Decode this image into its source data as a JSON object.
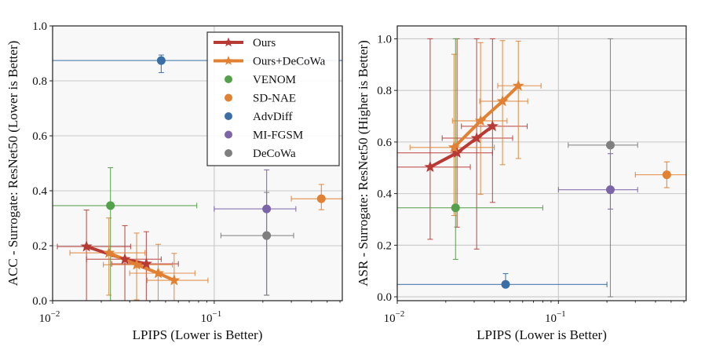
{
  "colors": {
    "Ours": "#b83a35",
    "Ours+DeCoWa": "#e08133",
    "VENOM": "#55a04a",
    "SD-NAE": "#e08133",
    "AdvDiff": "#3a6ea5",
    "MI-FGSM": "#7b64a8",
    "DeCoWa": "#7f7f7f"
  },
  "legend": {
    "placement": "top-right of left panel",
    "entries": [
      {
        "label": "Ours",
        "marker": "star-line"
      },
      {
        "label": "Ours+DeCoWa",
        "marker": "star-line"
      },
      {
        "label": "VENOM",
        "marker": "circle"
      },
      {
        "label": "SD-NAE",
        "marker": "circle"
      },
      {
        "label": "AdvDiff",
        "marker": "circle"
      },
      {
        "label": "MI-FGSM",
        "marker": "circle"
      },
      {
        "label": "DeCoWa",
        "marker": "circle"
      }
    ]
  },
  "chart_data": [
    {
      "type": "scatter",
      "title": "",
      "xlabel": "LPIPS (Lower is Better)",
      "ylabel": "ACC - Surrogate: ResNet50 (Lower is Better)",
      "xscale": "log",
      "xlim": [
        0.01,
        0.62
      ],
      "ylim": [
        0.0,
        1.0
      ],
      "yticks": [
        "0.0",
        "0.2",
        "0.4",
        "0.6",
        "0.8",
        "1.0"
      ],
      "xticks": [
        {
          "base": "10",
          "exp": "−2"
        },
        {
          "base": "10",
          "exp": "−1"
        }
      ],
      "grid": true,
      "series": [
        {
          "name": "Ours",
          "kind": "line",
          "points": [
            {
              "x": 0.0162,
              "y": 0.197,
              "xerr": [
                0.0055,
                0.0142
              ],
              "yerr": [
                0.197,
                0.133
              ]
            },
            {
              "x": 0.028,
              "y": 0.151,
              "xerr": [
                0.0118,
                0.019
              ],
              "yerr": [
                0.151,
                0.122
              ]
            },
            {
              "x": 0.038,
              "y": 0.134,
              "xerr": [
                0.0148,
                0.022
              ],
              "yerr": [
                0.134,
                0.117
              ]
            }
          ]
        },
        {
          "name": "Ours+DeCoWa",
          "kind": "line",
          "points": [
            {
              "x": 0.0223,
              "y": 0.174,
              "xerr": [
                0.0095,
                0.015
              ],
              "yerr": [
                0.154,
                0.127
              ]
            },
            {
              "x": 0.0331,
              "y": 0.131,
              "xerr": [
                0.0125,
                0.022
              ],
              "yerr": [
                0.128,
                0.115
              ]
            },
            {
              "x": 0.045,
              "y": 0.1,
              "xerr": [
                0.015,
                0.031
              ],
              "yerr": [
                0.1,
                0.105
              ]
            },
            {
              "x": 0.0565,
              "y": 0.074,
              "xerr": [
                0.018,
                0.035
              ],
              "yerr": [
                0.074,
                0.098
              ]
            }
          ]
        },
        {
          "name": "VENOM",
          "kind": "point",
          "points": [
            {
              "x": 0.0228,
              "y": 0.346,
              "xerr": [
                0.0128,
                0.0552
              ],
              "yerr": [
                0.346,
                0.138
              ]
            }
          ]
        },
        {
          "name": "SD-NAE",
          "kind": "point",
          "points": [
            {
              "x": 0.46,
              "y": 0.371,
              "xerr": [
                0.16,
                0.16
              ],
              "yerr": [
                0.04,
                0.052
              ]
            }
          ]
        },
        {
          "name": "AdvDiff",
          "kind": "point",
          "points": [
            {
              "x": 0.047,
              "y": 0.874,
              "xerr": [
                0.037,
                0.6
              ],
              "yerr": [
                0.044,
                0.02
              ]
            }
          ]
        },
        {
          "name": "MI-FGSM",
          "kind": "point",
          "points": [
            {
              "x": 0.211,
              "y": 0.334,
              "xerr": [
                0.111,
                0.109
              ],
              "yerr": [
                0.314,
                0.142
              ]
            }
          ]
        },
        {
          "name": "DeCoWa",
          "kind": "point",
          "points": [
            {
              "x": 0.211,
              "y": 0.237,
              "xerr": [
                0.101,
                0.099
              ],
              "yerr": [
                0.217,
                0.157
              ]
            }
          ]
        }
      ]
    },
    {
      "type": "scatter",
      "title": "",
      "xlabel": "LPIPS (Lower is Better)",
      "ylabel": "ASR - Surrogate: ResNet50 (Higher is Better)",
      "xscale": "log",
      "xlim": [
        0.01,
        0.62
      ],
      "ylim": [
        -0.015,
        1.05
      ],
      "yticks": [
        "0.0",
        "0.2",
        "0.4",
        "0.6",
        "0.8",
        "1.0"
      ],
      "xticks": [
        {
          "base": "10",
          "exp": "−2"
        },
        {
          "base": "10",
          "exp": "−1"
        }
      ],
      "grid": true,
      "series": [
        {
          "name": "Ours",
          "kind": "line",
          "points": [
            {
              "x": 0.016,
              "y": 0.503,
              "xerr": [
                0.0066,
                0.0124
              ],
              "yerr": [
                0.28,
                0.497
              ]
            },
            {
              "x": 0.0235,
              "y": 0.558,
              "xerr": [
                0.0135,
                0.0155
              ],
              "yerr": [
                0.288,
                0.442
              ]
            },
            {
              "x": 0.0311,
              "y": 0.615,
              "xerr": [
                0.0121,
                0.0209
              ],
              "yerr": [
                0.43,
                0.385
              ]
            },
            {
              "x": 0.039,
              "y": 0.661,
              "xerr": [
                0.014,
                0.025
              ],
              "yerr": [
                0.295,
                0.339
              ]
            }
          ]
        },
        {
          "name": "Ours+DeCoWa",
          "kind": "line",
          "points": [
            {
              "x": 0.0225,
              "y": 0.579,
              "xerr": [
                0.0105,
                0.0175
              ],
              "yerr": [
                0.264,
                0.361
              ]
            },
            {
              "x": 0.0329,
              "y": 0.682,
              "xerr": [
                0.0109,
                0.0151
              ],
              "yerr": [
                0.285,
                0.303
              ]
            },
            {
              "x": 0.045,
              "y": 0.758,
              "xerr": [
                0.0125,
                0.0195
              ],
              "yerr": [
                0.246,
                0.235
              ]
            },
            {
              "x": 0.0564,
              "y": 0.818,
              "xerr": [
                0.0144,
                0.0216
              ],
              "yerr": [
                0.282,
                0.173
              ]
            }
          ]
        },
        {
          "name": "VENOM",
          "kind": "point",
          "points": [
            {
              "x": 0.023,
              "y": 0.345,
              "xerr": [
                0.013,
                0.057
              ],
              "yerr": [
                0.2,
                0.655
              ]
            }
          ]
        },
        {
          "name": "SD-NAE",
          "kind": "point",
          "points": [
            {
              "x": 0.47,
              "y": 0.473,
              "xerr": [
                0.17,
                0.15
              ],
              "yerr": [
                0.05,
                0.05
              ]
            }
          ]
        },
        {
          "name": "AdvDiff",
          "kind": "point",
          "points": [
            {
              "x": 0.047,
              "y": 0.048,
              "xerr": [
                0.037,
                0.153
              ],
              "yerr": [
                0.0,
                0.042
              ]
            }
          ]
        },
        {
          "name": "MI-FGSM",
          "kind": "point",
          "points": [
            {
              "x": 0.21,
              "y": 0.415,
              "xerr": [
                0.11,
                0.1
              ],
              "yerr": [
                0.075,
                0.14
              ]
            }
          ]
        },
        {
          "name": "DeCoWa",
          "kind": "point",
          "points": [
            {
              "x": 0.21,
              "y": 0.588,
              "xerr": [
                0.095,
                0.1
              ],
              "yerr": [
                0.588,
                0.412
              ]
            }
          ]
        }
      ]
    }
  ]
}
